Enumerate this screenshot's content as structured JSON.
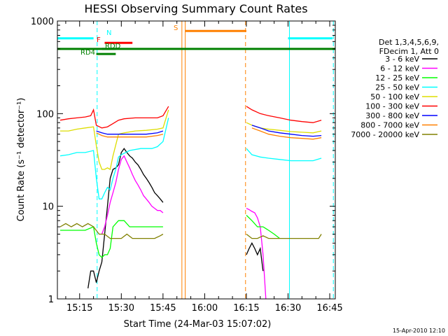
{
  "chart_data": {
    "type": "line",
    "title": "HESSI Observing Summary Count Rates",
    "xlabel": "Start Time (24-Mar-03 15:07:02)",
    "ylabel": "Count Rate (s⁻¹ detector⁻¹)",
    "yscale": "log",
    "ylim": [
      1,
      1000
    ],
    "xlim": [
      0,
      100
    ],
    "x_units": "minutes after 15:07:02",
    "x_ticks": [
      {
        "x": 8,
        "label": "15:15"
      },
      {
        "x": 23,
        "label": "15:30"
      },
      {
        "x": 38,
        "label": "15:45"
      },
      {
        "x": 53,
        "label": "16:00"
      },
      {
        "x": 68,
        "label": "16:15"
      },
      {
        "x": 83,
        "label": "16:30"
      },
      {
        "x": 98,
        "label": "16:45"
      }
    ],
    "y_ticks": [
      {
        "y": 1,
        "label": "1"
      },
      {
        "y": 10,
        "label": "10"
      },
      {
        "y": 100,
        "label": "100"
      },
      {
        "y": 1000,
        "label": "1000"
      }
    ],
    "legend_header": [
      "Det 1,3,4,5,6,9,",
      "FDecim 1, Att 0"
    ],
    "legend_position": "right",
    "series": [
      {
        "name": "3 - 6 keV",
        "color": "#000000",
        "segments": [
          [
            [
              11,
              1.3
            ],
            [
              12,
              2
            ],
            [
              13,
              2
            ],
            [
              14,
              1.5
            ],
            [
              15,
              2
            ],
            [
              16,
              2.5
            ],
            [
              17,
              5
            ],
            [
              18,
              10
            ],
            [
              19,
              20
            ],
            [
              20,
              25
            ],
            [
              21,
              26
            ],
            [
              22,
              28
            ],
            [
              23,
              38
            ],
            [
              24,
              42
            ],
            [
              25,
              38
            ],
            [
              26,
              35
            ],
            [
              27,
              33
            ],
            [
              28,
              30
            ],
            [
              29,
              28
            ],
            [
              30,
              25
            ],
            [
              31,
              22
            ],
            [
              32,
              20
            ],
            [
              33,
              18
            ],
            [
              34,
              16
            ],
            [
              35,
              14
            ],
            [
              36,
              13
            ],
            [
              37,
              12
            ],
            [
              38,
              11
            ]
          ],
          [
            [
              68,
              3
            ],
            [
              69,
              3.5
            ],
            [
              70,
              4
            ],
            [
              71,
              3.5
            ],
            [
              72,
              3
            ],
            [
              73,
              3.5
            ],
            [
              74,
              2
            ]
          ]
        ]
      },
      {
        "name": "6 - 12 keV",
        "color": "#ff00ff",
        "segments": [
          [
            [
              16,
              5
            ],
            [
              17,
              6
            ],
            [
              18,
              8
            ],
            [
              19,
              11
            ],
            [
              20,
              14
            ],
            [
              21,
              18
            ],
            [
              22,
              25
            ],
            [
              23,
              32
            ],
            [
              24,
              35
            ],
            [
              25,
              30
            ],
            [
              26,
              26
            ],
            [
              27,
              22
            ],
            [
              28,
              19
            ],
            [
              29,
              17
            ],
            [
              30,
              15
            ],
            [
              31,
              13
            ],
            [
              32,
              12
            ],
            [
              33,
              11
            ],
            [
              34,
              10
            ],
            [
              35,
              9.5
            ],
            [
              36,
              9
            ],
            [
              37,
              9
            ],
            [
              38,
              8.5
            ]
          ],
          [
            [
              68,
              9.5
            ],
            [
              69,
              9.2
            ],
            [
              70,
              8.8
            ],
            [
              71,
              8.5
            ],
            [
              72,
              7.5
            ],
            [
              73,
              6
            ],
            [
              74,
              3
            ],
            [
              75,
              1
            ]
          ]
        ]
      },
      {
        "name": "12 - 25 keV",
        "color": "#00ff00",
        "segments": [
          [
            [
              1,
              5.5
            ],
            [
              5,
              5.5
            ],
            [
              10,
              5.5
            ],
            [
              13,
              6
            ],
            [
              14,
              4
            ],
            [
              15,
              3
            ],
            [
              16,
              2.8
            ],
            [
              17,
              3
            ],
            [
              18,
              3
            ],
            [
              19,
              3.5
            ],
            [
              20,
              6
            ],
            [
              22,
              7
            ],
            [
              24,
              7
            ],
            [
              26,
              6
            ],
            [
              28,
              6
            ],
            [
              30,
              6
            ],
            [
              32,
              6
            ],
            [
              34,
              6
            ],
            [
              36,
              6
            ],
            [
              38,
              6
            ]
          ],
          [
            [
              68,
              8
            ],
            [
              70,
              7
            ],
            [
              72,
              6
            ],
            [
              74,
              6
            ],
            [
              76,
              5.5
            ],
            [
              78,
              5
            ],
            [
              80,
              4.5
            ]
          ]
        ]
      },
      {
        "name": "25 - 50 keV",
        "color": "#00ffff",
        "segments": [
          [
            [
              1,
              35
            ],
            [
              4,
              36
            ],
            [
              7,
              38
            ],
            [
              10,
              38
            ],
            [
              13,
              40
            ],
            [
              14,
              20
            ],
            [
              15,
              12
            ],
            [
              16,
              12
            ],
            [
              17,
              14
            ],
            [
              18,
              16
            ],
            [
              19,
              15
            ],
            [
              20,
              20
            ],
            [
              21,
              25
            ],
            [
              22,
              34
            ],
            [
              23,
              36
            ],
            [
              26,
              40
            ],
            [
              30,
              42
            ],
            [
              34,
              42
            ],
            [
              36,
              44
            ],
            [
              38,
              50
            ],
            [
              40,
              90
            ]
          ],
          [
            [
              68,
              42
            ],
            [
              70,
              36
            ],
            [
              73,
              34
            ],
            [
              76,
              33
            ],
            [
              80,
              32
            ],
            [
              84,
              31
            ],
            [
              88,
              31
            ],
            [
              92,
              31
            ],
            [
              95,
              33
            ]
          ]
        ]
      },
      {
        "name": "50 - 100 keV",
        "color": "#dddd00",
        "segments": [
          [
            [
              1,
              65
            ],
            [
              4,
              65
            ],
            [
              7,
              68
            ],
            [
              10,
              70
            ],
            [
              13,
              72
            ],
            [
              14,
              45
            ],
            [
              15,
              30
            ],
            [
              16,
              25
            ],
            [
              17,
              25
            ],
            [
              18,
              26
            ],
            [
              19,
              25
            ],
            [
              20,
              35
            ],
            [
              22,
              60
            ],
            [
              24,
              62
            ],
            [
              28,
              65
            ],
            [
              32,
              66
            ],
            [
              36,
              68
            ],
            [
              38,
              70
            ],
            [
              40,
              110
            ]
          ],
          [
            [
              68,
              80
            ],
            [
              70,
              75
            ],
            [
              73,
              70
            ],
            [
              76,
              68
            ],
            [
              80,
              66
            ],
            [
              84,
              64
            ],
            [
              88,
              63
            ],
            [
              92,
              62
            ],
            [
              95,
              65
            ]
          ]
        ]
      },
      {
        "name": "100 - 300 keV",
        "color": "#ff0000",
        "segments": [
          [
            [
              1,
              85
            ],
            [
              4,
              88
            ],
            [
              7,
              90
            ],
            [
              10,
              92
            ],
            [
              12,
              95
            ],
            [
              13,
              110
            ],
            [
              14,
              75
            ],
            [
              16,
              70
            ],
            [
              18,
              72
            ],
            [
              20,
              78
            ],
            [
              22,
              85
            ],
            [
              24,
              88
            ],
            [
              28,
              90
            ],
            [
              32,
              90
            ],
            [
              36,
              90
            ],
            [
              38,
              95
            ],
            [
              40,
              120
            ]
          ],
          [
            [
              68,
              120
            ],
            [
              70,
              110
            ],
            [
              73,
              100
            ],
            [
              76,
              95
            ],
            [
              80,
              90
            ],
            [
              84,
              85
            ],
            [
              88,
              82
            ],
            [
              92,
              80
            ],
            [
              95,
              85
            ]
          ]
        ]
      },
      {
        "name": "300 - 800 keV",
        "color": "#0000ff",
        "segments": [
          [
            [
              14,
              65
            ],
            [
              16,
              62
            ],
            [
              18,
              60
            ],
            [
              20,
              60
            ],
            [
              22,
              60
            ],
            [
              24,
              60
            ],
            [
              28,
              60
            ],
            [
              32,
              60
            ],
            [
              36,
              62
            ],
            [
              38,
              65
            ]
          ],
          [
            [
              70,
              75
            ],
            [
              73,
              70
            ],
            [
              76,
              65
            ],
            [
              80,
              62
            ],
            [
              84,
              60
            ],
            [
              88,
              58
            ],
            [
              92,
              57
            ],
            [
              95,
              58
            ]
          ]
        ]
      },
      {
        "name": "800 - 7000 keV",
        "color": "#ff8000",
        "segments": [
          [
            [
              14,
              62
            ],
            [
              16,
              58
            ],
            [
              18,
              56
            ],
            [
              20,
              56
            ],
            [
              22,
              56
            ],
            [
              24,
              56
            ],
            [
              28,
              56
            ],
            [
              32,
              56
            ],
            [
              36,
              58
            ],
            [
              38,
              60
            ]
          ],
          [
            [
              70,
              70
            ],
            [
              73,
              65
            ],
            [
              76,
              60
            ],
            [
              80,
              57
            ],
            [
              84,
              55
            ],
            [
              88,
              54
            ],
            [
              92,
              53
            ],
            [
              95,
              55
            ]
          ]
        ]
      },
      {
        "name": "7000 - 20000 keV",
        "color": "#808000",
        "segments": [
          [
            [
              1,
              6
            ],
            [
              3,
              6.5
            ],
            [
              5,
              6
            ],
            [
              7,
              6.5
            ],
            [
              9,
              6
            ],
            [
              11,
              6.5
            ],
            [
              13,
              6
            ],
            [
              15,
              5
            ],
            [
              17,
              5
            ],
            [
              19,
              4.5
            ],
            [
              21,
              4.5
            ],
            [
              23,
              4.5
            ],
            [
              25,
              5
            ],
            [
              27,
              4.5
            ],
            [
              29,
              4.5
            ],
            [
              31,
              4.5
            ],
            [
              33,
              4.5
            ],
            [
              35,
              4.5
            ],
            [
              37,
              4.8
            ],
            [
              38,
              5
            ]
          ],
          [
            [
              68,
              5
            ],
            [
              70,
              4.5
            ],
            [
              72,
              4.5
            ],
            [
              74,
              4.8
            ],
            [
              76,
              4.5
            ],
            [
              78,
              4.5
            ],
            [
              80,
              4.5
            ],
            [
              82,
              4.5
            ],
            [
              84,
              4.5
            ],
            [
              86,
              4.5
            ],
            [
              88,
              4.5
            ],
            [
              90,
              4.5
            ],
            [
              92,
              4.5
            ],
            [
              94,
              4.5
            ],
            [
              95,
              5
            ]
          ]
        ]
      }
    ],
    "flags": [
      {
        "label": "N",
        "color": "#00ffff",
        "x1": 0,
        "x2": 13,
        "y": 650,
        "x3": 83,
        "x4": 99
      },
      {
        "label": "F",
        "color": "#ff0000",
        "x1": 17,
        "x2": 27,
        "y": 580
      },
      {
        "label": "RDD",
        "color": "#008000",
        "x1": 16,
        "x2": 21,
        "y": 500
      },
      {
        "label": "RD4",
        "color": "#008000",
        "x1": 14,
        "x2": 21,
        "y": 440
      },
      {
        "label": "S",
        "color": "#ff8000",
        "x1": 46,
        "x2": 68,
        "y": 780
      }
    ],
    "full_bar": {
      "color": "#008000",
      "y": 500
    },
    "vlines": [
      {
        "x": 14.3,
        "color": "#00ffff",
        "dash": true
      },
      {
        "x": 44.8,
        "color": "#ff8000",
        "dash": false
      },
      {
        "x": 46.0,
        "color": "#ff8000",
        "dash": false
      },
      {
        "x": 67.7,
        "color": "#ff8000",
        "dash": true
      },
      {
        "x": 83.5,
        "color": "#00ffff",
        "dash": false
      },
      {
        "x": 99.3,
        "color": "#00ffff",
        "dash": true
      }
    ],
    "footer": "15-Apr-2010 12:10"
  }
}
